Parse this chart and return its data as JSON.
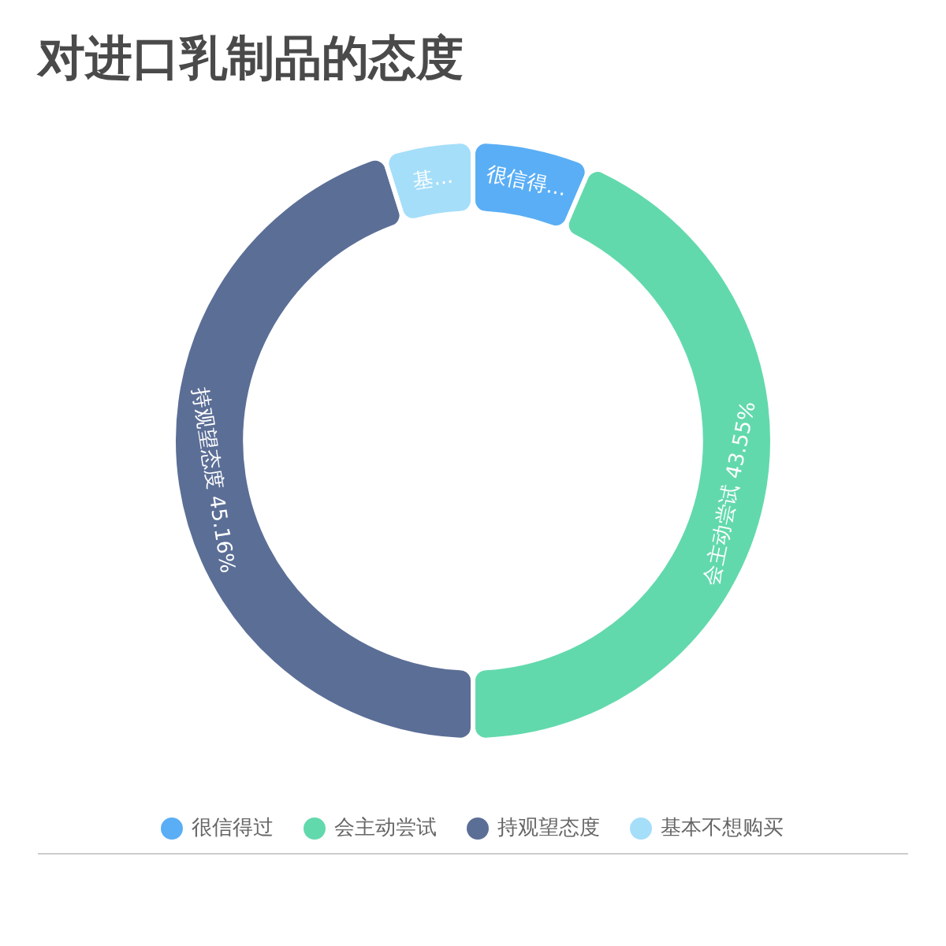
{
  "chart_data": {
    "type": "donut",
    "title": "对进口乳制品的态度",
    "categories": [
      "很信得过",
      "会主动尝试",
      "持观望态度",
      "基本不想购买"
    ],
    "values": [
      6.45,
      43.55,
      45.16,
      4.84
    ],
    "colors": [
      "#5aaef5",
      "#62d9ac",
      "#5b6e96",
      "#a5def9"
    ],
    "value_labels": [
      "很信得...",
      "会主动尝试 43.55%",
      "持观望态度 45.16%",
      "基..."
    ],
    "legend": "bottom"
  }
}
